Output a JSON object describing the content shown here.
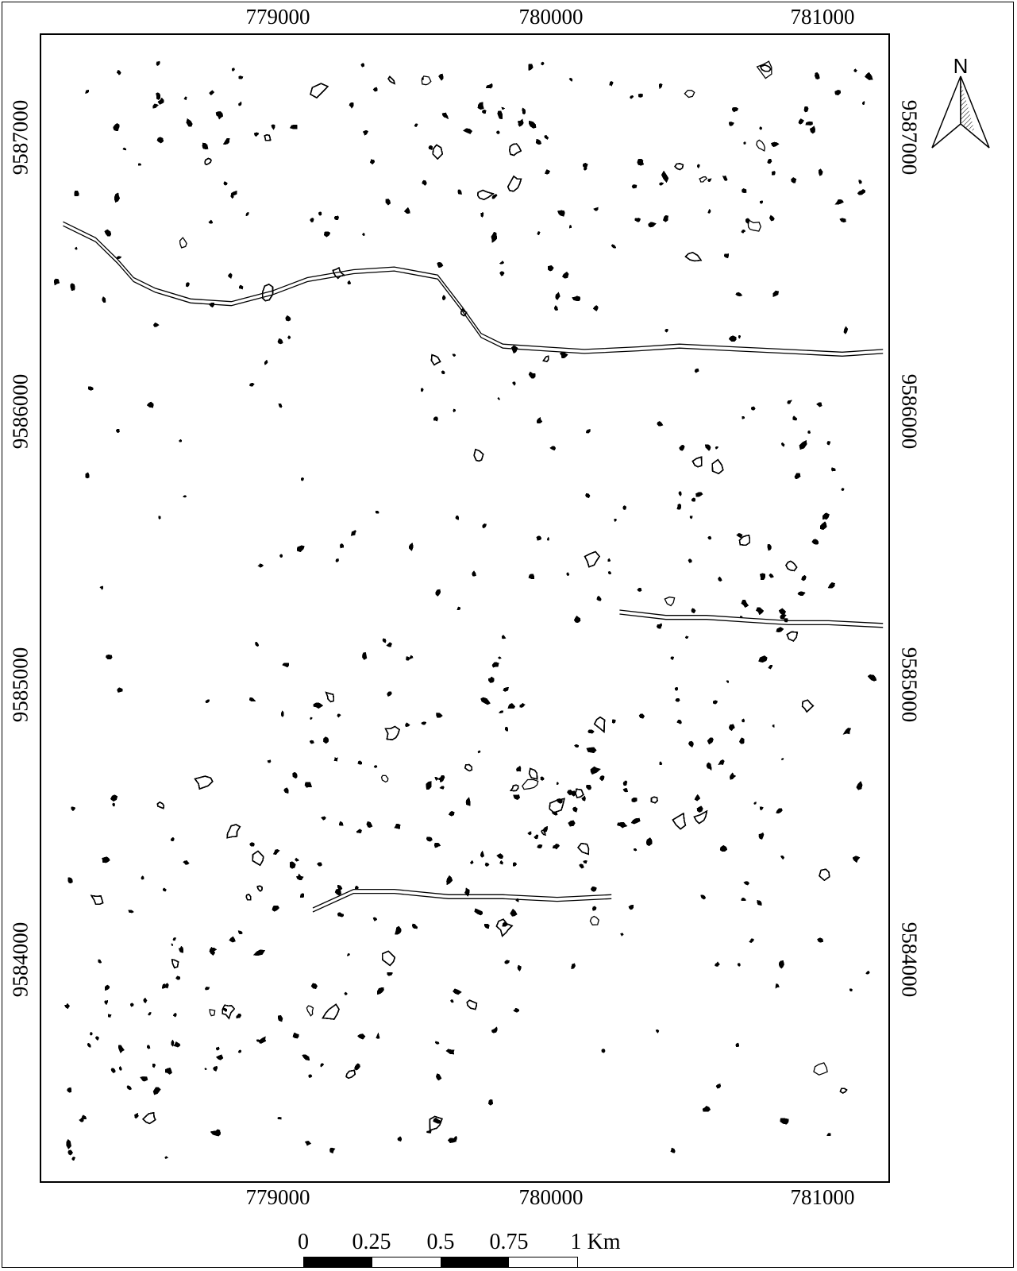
{
  "map": {
    "x_ticks": [
      {
        "label": "779000",
        "value": 779000
      },
      {
        "label": "780000",
        "value": 780000
      },
      {
        "label": "781000",
        "value": 781000
      }
    ],
    "y_ticks": [
      {
        "label": "9587000",
        "value": 9587000
      },
      {
        "label": "9586000",
        "value": 9586000
      },
      {
        "label": "9585000",
        "value": 9585000
      },
      {
        "label": "9584000",
        "value": 9584000
      }
    ],
    "x_range": [
      778100,
      781220
    ],
    "y_range": [
      9583080,
      9587390
    ],
    "outline_color": "#000000",
    "features": "contour-outline-polygons",
    "linear_features": [
      {
        "name": "stream-upper",
        "points": [
          [
            778180,
            9586680
          ],
          [
            778300,
            9586620
          ],
          [
            778380,
            9586540
          ],
          [
            778440,
            9586470
          ],
          [
            778520,
            9586430
          ],
          [
            778650,
            9586390
          ],
          [
            778800,
            9586380
          ],
          [
            778950,
            9586420
          ],
          [
            779080,
            9586470
          ],
          [
            779250,
            9586500
          ],
          [
            779400,
            9586510
          ],
          [
            779560,
            9586480
          ],
          [
            779650,
            9586360
          ],
          [
            779720,
            9586260
          ],
          [
            779800,
            9586220
          ],
          [
            779950,
            9586210
          ],
          [
            780100,
            9586200
          ],
          [
            780300,
            9586210
          ],
          [
            780450,
            9586220
          ],
          [
            780650,
            9586210
          ],
          [
            780850,
            9586200
          ],
          [
            781050,
            9586190
          ],
          [
            781200,
            9586200
          ]
        ]
      },
      {
        "name": "stream-middle",
        "points": [
          [
            780230,
            9585220
          ],
          [
            780400,
            9585200
          ],
          [
            780550,
            9585200
          ],
          [
            780700,
            9585190
          ],
          [
            780850,
            9585180
          ],
          [
            781000,
            9585180
          ],
          [
            781200,
            9585170
          ]
        ]
      },
      {
        "name": "stream-lower",
        "points": [
          [
            779100,
            9584100
          ],
          [
            779250,
            9584170
          ],
          [
            779400,
            9584170
          ],
          [
            779600,
            9584150
          ],
          [
            779800,
            9584150
          ],
          [
            780000,
            9584140
          ],
          [
            780200,
            9584150
          ]
        ]
      }
    ]
  },
  "north_arrow": {
    "letter": "N"
  },
  "scale_bar": {
    "labels": [
      "0",
      "0.25",
      "0.5",
      "0.75",
      "1 Km"
    ],
    "segments": [
      "black",
      "white",
      "black",
      "white"
    ]
  }
}
